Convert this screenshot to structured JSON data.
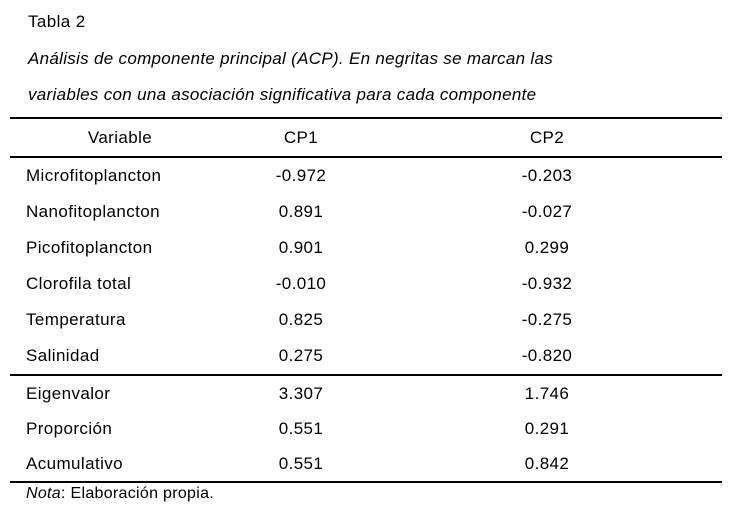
{
  "document": {
    "title": "Tabla 2",
    "caption_line1": "Análisis de componente principal (ACP). En negritas se marcan las",
    "caption_line2": "variables con una asociación significativa para cada componente",
    "note_label": "Nota",
    "note_text": ": Elaboración propia."
  },
  "table": {
    "headers": [
      "Variable",
      "CP1",
      "CP2"
    ],
    "rows": [
      {
        "variable": "Microfitoplancton",
        "cp1": "-0.972",
        "cp2": "-0.203"
      },
      {
        "variable": "Nanofitoplancton",
        "cp1": "0.891",
        "cp2": "-0.027"
      },
      {
        "variable": "Picofitoplancton",
        "cp1": "0.901",
        "cp2": "0.299"
      },
      {
        "variable": "Clorofila total",
        "cp1": "-0.010",
        "cp2": "-0.932"
      },
      {
        "variable": "Temperatura",
        "cp1": "0.825",
        "cp2": "-0.275"
      },
      {
        "variable": "Salinidad",
        "cp1": "0.275",
        "cp2": "-0.820"
      }
    ],
    "summary_rows": [
      {
        "variable": "Eigenvalor",
        "cp1": "3.307",
        "cp2": "1.746"
      },
      {
        "variable": "Proporción",
        "cp1": "0.551",
        "cp2": "0.291"
      },
      {
        "variable": "Acumulativo",
        "cp1": "0.551",
        "cp2": "0.842"
      }
    ]
  },
  "colors": {
    "text": "#000000",
    "background": "#ffffff",
    "rule": "#000000"
  }
}
